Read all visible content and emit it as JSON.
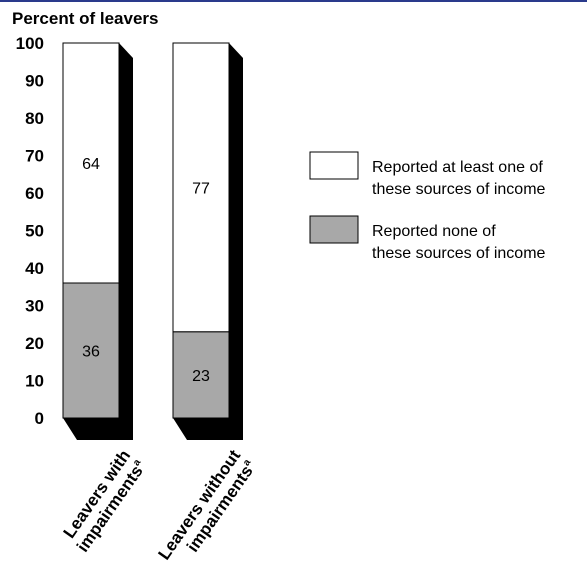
{
  "chart_data": {
    "type": "bar",
    "stacked": true,
    "ylabel": "Percent of leavers",
    "ylim": [
      0,
      100
    ],
    "yticks": [
      0,
      10,
      20,
      30,
      40,
      50,
      60,
      70,
      80,
      90,
      100
    ],
    "categories": [
      {
        "line1": "Leavers with",
        "line2": "impairments",
        "footnote": "a"
      },
      {
        "line1": "Leavers without",
        "line2": "impairments",
        "footnote": "a"
      }
    ],
    "series": [
      {
        "name": "Reported none of these sources of income",
        "legend_lines": [
          "Reported none of",
          "these sources of income"
        ],
        "color": "#a8a8a8",
        "values": [
          36,
          23
        ]
      },
      {
        "name": "Reported at least one of these sources of income",
        "legend_lines": [
          "Reported at least one of",
          "these sources of income"
        ],
        "color": "#ffffff",
        "values": [
          64,
          77
        ]
      }
    ],
    "grid": false,
    "legend_position": "right"
  }
}
